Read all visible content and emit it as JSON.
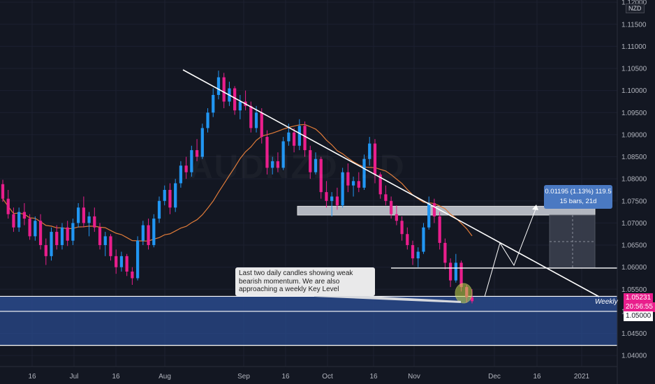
{
  "chart_data": {
    "type": "candlestick",
    "watermark": "AUDNZD, 1D",
    "currency": "NZD",
    "y_axis": {
      "ticks": [
        "1.12000",
        "1.11500",
        "1.11000",
        "1.10500",
        "1.10000",
        "1.09500",
        "1.09000",
        "1.08500",
        "1.08000",
        "1.07500",
        "1.07000",
        "1.06500",
        "1.06000",
        "1.05500",
        "1.05000",
        "1.04500",
        "1.04000"
      ],
      "ylim": [
        1.0375,
        1.1205
      ]
    },
    "x_axis": {
      "ticks": [
        "16",
        "Jul",
        "16",
        "Aug",
        "Sep",
        "16",
        "Oct",
        "16",
        "Nov",
        "Dec",
        "16",
        "2021"
      ]
    },
    "price_labels": {
      "current": "1.05231",
      "countdown": "20:56:55",
      "level": "1.05000"
    },
    "candles": [
      [
        1.0788,
        1.0798,
        1.0748,
        1.0755
      ],
      [
        1.0755,
        1.0775,
        1.071,
        1.072
      ],
      [
        1.072,
        1.0735,
        1.068,
        1.069
      ],
      [
        1.069,
        1.0735,
        1.068,
        1.0725
      ],
      [
        1.0725,
        1.0745,
        1.0695,
        1.071
      ],
      [
        1.071,
        1.072,
        1.0662,
        1.067
      ],
      [
        1.067,
        1.0715,
        1.066,
        1.0705
      ],
      [
        1.0705,
        1.072,
        1.064,
        1.065
      ],
      [
        1.065,
        1.0665,
        1.0605,
        1.0625
      ],
      [
        1.0625,
        1.069,
        1.0615,
        1.068
      ],
      [
        1.068,
        1.0695,
        1.064,
        1.065
      ],
      [
        1.065,
        1.07,
        1.064,
        1.069
      ],
      [
        1.069,
        1.0705,
        1.0648,
        1.066
      ],
      [
        1.066,
        1.071,
        1.065,
        1.07
      ],
      [
        1.07,
        1.0745,
        1.069,
        1.0735
      ],
      [
        1.0735,
        1.076,
        1.069,
        1.07
      ],
      [
        1.07,
        1.0725,
        1.067,
        1.0715
      ],
      [
        1.0715,
        1.0735,
        1.068,
        1.069
      ],
      [
        1.069,
        1.07,
        1.064,
        1.065
      ],
      [
        1.065,
        1.068,
        1.0625,
        1.067
      ],
      [
        1.067,
        1.0675,
        1.0615,
        1.0625
      ],
      [
        1.0625,
        1.064,
        1.0585,
        1.06
      ],
      [
        1.06,
        1.0635,
        1.059,
        1.0625
      ],
      [
        1.0625,
        1.063,
        1.058,
        1.059
      ],
      [
        1.059,
        1.06,
        1.056,
        1.0575
      ],
      [
        1.0575,
        1.067,
        1.057,
        1.066
      ],
      [
        1.066,
        1.0705,
        1.065,
        1.0695
      ],
      [
        1.0695,
        1.071,
        1.064,
        1.065
      ],
      [
        1.065,
        1.072,
        1.0645,
        1.071
      ],
      [
        1.071,
        1.076,
        1.07,
        1.075
      ],
      [
        1.075,
        1.0785,
        1.074,
        1.0775
      ],
      [
        1.0775,
        1.079,
        1.072,
        1.0735
      ],
      [
        1.0735,
        1.08,
        1.0725,
        1.079
      ],
      [
        1.079,
        1.084,
        1.078,
        1.083
      ],
      [
        1.083,
        1.085,
        1.08,
        1.0815
      ],
      [
        1.0815,
        1.0875,
        1.0805,
        1.0865
      ],
      [
        1.0865,
        1.089,
        1.084,
        1.085
      ],
      [
        1.085,
        1.0925,
        1.0845,
        1.0915
      ],
      [
        1.0915,
        1.096,
        1.0905,
        1.095
      ],
      [
        1.095,
        1.1005,
        1.094,
        1.099
      ],
      [
        1.099,
        1.1045,
        1.098,
        1.103
      ],
      [
        1.103,
        1.104,
        1.096,
        1.0975
      ],
      [
        1.0975,
        1.102,
        1.0965,
        1.1005
      ],
      [
        1.1005,
        1.101,
        1.0945,
        1.0955
      ],
      [
        1.0955,
        1.099,
        1.0935,
        1.0975
      ],
      [
        1.0975,
        1.1,
        1.0955,
        1.0965
      ],
      [
        1.0965,
        1.0975,
        1.0905,
        1.0915
      ],
      [
        1.0915,
        1.0965,
        1.0905,
        1.095
      ],
      [
        1.095,
        1.096,
        1.088,
        1.0895
      ],
      [
        1.0895,
        1.091,
        1.081,
        1.0825
      ],
      [
        1.0825,
        1.085,
        1.081,
        1.084
      ],
      [
        1.084,
        1.086,
        1.0815,
        1.0825
      ],
      [
        1.0825,
        1.0895,
        1.082,
        1.0885
      ],
      [
        1.0885,
        1.0925,
        1.0875,
        1.0905
      ],
      [
        1.0905,
        1.0915,
        1.086,
        1.0875
      ],
      [
        1.0875,
        1.0935,
        1.0865,
        1.092
      ],
      [
        1.092,
        1.093,
        1.085,
        1.0865
      ],
      [
        1.0865,
        1.0875,
        1.08,
        1.0815
      ],
      [
        1.0815,
        1.086,
        1.081,
        1.0845
      ],
      [
        1.0845,
        1.085,
        1.0755,
        1.077
      ],
      [
        1.077,
        1.0795,
        1.0735,
        1.075
      ],
      [
        1.075,
        1.077,
        1.0715,
        1.076
      ],
      [
        1.076,
        1.078,
        1.073,
        1.074
      ],
      [
        1.074,
        1.0825,
        1.0735,
        1.0815
      ],
      [
        1.0815,
        1.0835,
        1.077,
        1.0785
      ],
      [
        1.0785,
        1.0805,
        1.076,
        1.0795
      ],
      [
        1.0795,
        1.0815,
        1.077,
        1.078
      ],
      [
        1.078,
        1.0855,
        1.0775,
        1.0845
      ],
      [
        1.0845,
        1.0895,
        1.083,
        1.088
      ],
      [
        1.088,
        1.089,
        1.079,
        1.081
      ],
      [
        1.081,
        1.0815,
        1.0755,
        1.0765
      ],
      [
        1.0765,
        1.0785,
        1.074,
        1.075
      ],
      [
        1.075,
        1.076,
        1.071,
        1.072
      ],
      [
        1.072,
        1.074,
        1.0695,
        1.0705
      ],
      [
        1.0705,
        1.0715,
        1.066,
        1.0675
      ],
      [
        1.0675,
        1.069,
        1.064,
        1.065
      ],
      [
        1.065,
        1.066,
        1.0605,
        1.062
      ],
      [
        1.062,
        1.0645,
        1.06,
        1.0635
      ],
      [
        1.0635,
        1.07,
        1.063,
        1.069
      ],
      [
        1.069,
        1.076,
        1.0685,
        1.0745
      ],
      [
        1.0745,
        1.0755,
        1.07,
        1.0715
      ],
      [
        1.0715,
        1.0725,
        1.064,
        1.0655
      ],
      [
        1.0655,
        1.0665,
        1.0595,
        1.061
      ],
      [
        1.061,
        1.062,
        1.0555,
        1.057
      ],
      [
        1.057,
        1.063,
        1.0565,
        1.061
      ],
      [
        1.061,
        1.0615,
        1.0545,
        1.0555
      ],
      [
        1.0555,
        1.056,
        1.052,
        1.0532
      ],
      [
        1.0532,
        1.055,
        1.0518,
        1.0523
      ]
    ]
  },
  "annotations": {
    "callout_text": "Last two daily candles showing weak bearish momentum. We are also approaching a weekly Key Level",
    "measure_line1": "0.01195 (1.13%) 119.5",
    "measure_line2": "15 bars, 21d",
    "weekly_label": "Weekly"
  },
  "colors": {
    "background": "#131722",
    "bullish": "#2196f3",
    "bearish": "#e91e8c",
    "moving_average": "#e07b39",
    "trendline": "#ffffff",
    "weekly_zone": "#2a4a8c",
    "current_price_bg": "#e91e8c"
  }
}
